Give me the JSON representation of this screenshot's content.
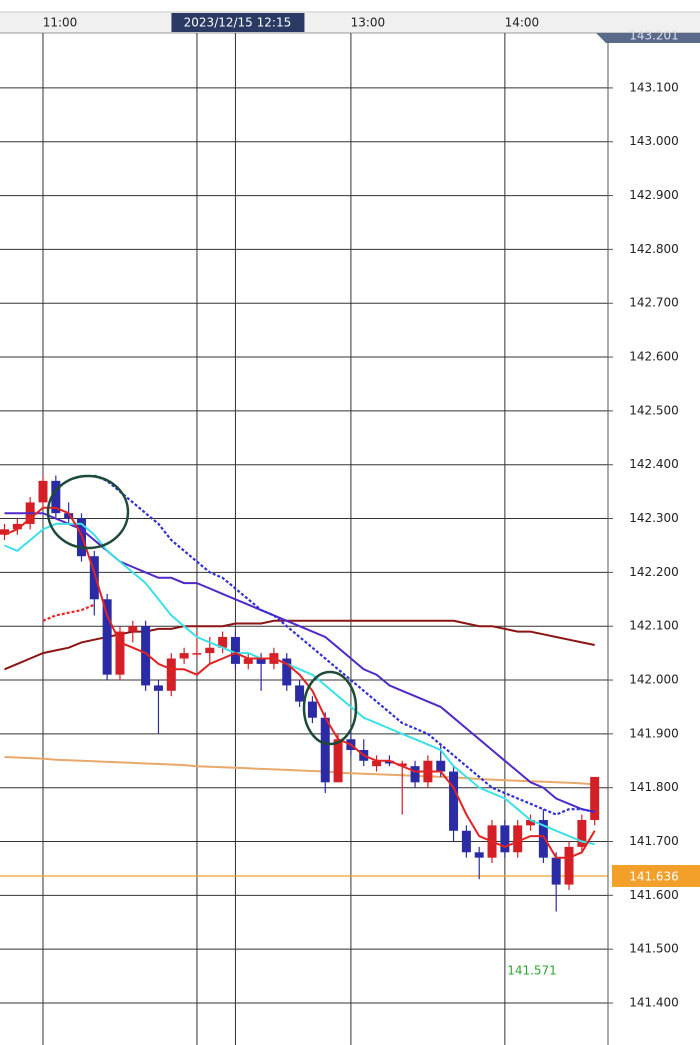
{
  "chart_data": {
    "type": "candlestick",
    "categories": [
      null,
      null,
      null,
      "11:00",
      null,
      null,
      null,
      null,
      null,
      null,
      null,
      null,
      null,
      null,
      null,
      null,
      null,
      null,
      "2023/12/15 12:15",
      null,
      null,
      null,
      null,
      null,
      null,
      null,
      null,
      "13:00",
      null,
      null,
      null,
      null,
      null,
      null,
      null,
      null,
      null,
      null,
      null,
      "14:00",
      null,
      null,
      null,
      null,
      null,
      null,
      null
    ],
    "open": [
      142.27,
      142.28,
      142.29,
      142.33,
      142.37,
      142.31,
      142.3,
      142.23,
      142.15,
      142.01,
      142.09,
      142.1,
      141.99,
      141.98,
      142.04,
      142.05,
      142.05,
      142.06,
      142.08,
      142.03,
      142.04,
      142.03,
      142.04,
      141.99,
      141.96,
      141.93,
      141.81,
      141.89,
      141.87,
      141.84,
      141.85,
      141.84,
      141.84,
      141.81,
      141.85,
      141.83,
      141.72,
      141.68,
      141.67,
      141.73,
      141.68,
      141.73,
      141.74,
      141.67,
      141.62,
      141.69,
      141.74
    ],
    "high": [
      142.29,
      142.3,
      142.34,
      142.38,
      142.38,
      142.33,
      142.31,
      142.24,
      142.16,
      142.1,
      142.11,
      142.11,
      142.0,
      142.05,
      142.06,
      142.09,
      142.08,
      142.09,
      142.09,
      142.05,
      142.05,
      142.06,
      142.05,
      142.0,
      141.97,
      141.94,
      141.9,
      141.91,
      141.89,
      141.86,
      141.86,
      141.85,
      141.85,
      141.86,
      141.88,
      141.84,
      141.73,
      141.69,
      141.74,
      141.74,
      141.74,
      141.75,
      141.76,
      141.68,
      141.7,
      141.75,
      141.82
    ],
    "low": [
      142.26,
      142.27,
      142.28,
      142.32,
      142.3,
      142.29,
      142.22,
      142.12,
      142.0,
      142.0,
      142.07,
      141.98,
      141.9,
      141.97,
      142.03,
      142.04,
      142.03,
      142.05,
      142.02,
      142.02,
      141.98,
      142.02,
      141.98,
      141.95,
      141.92,
      141.79,
      141.81,
      141.86,
      141.84,
      141.83,
      141.84,
      141.75,
      141.8,
      141.8,
      141.82,
      141.7,
      141.67,
      141.63,
      141.66,
      141.67,
      141.67,
      141.72,
      141.66,
      141.57,
      141.61,
      141.68,
      141.73
    ],
    "close": [
      142.28,
      142.29,
      142.33,
      142.37,
      142.31,
      142.3,
      142.23,
      142.15,
      142.01,
      142.09,
      142.1,
      141.99,
      141.98,
      142.04,
      142.05,
      142.05,
      142.06,
      142.08,
      142.03,
      142.04,
      142.03,
      142.05,
      141.99,
      141.96,
      141.93,
      141.81,
      141.89,
      141.87,
      141.85,
      141.85,
      141.845,
      141.845,
      141.81,
      141.85,
      141.83,
      141.72,
      141.68,
      141.67,
      141.73,
      141.68,
      141.73,
      141.74,
      141.67,
      141.62,
      141.69,
      141.74,
      141.82
    ],
    "up_color": "#d41f26",
    "down_color": "#2b2ba6",
    "lines": [
      {
        "color": "#e8a96a",
        "dash": false,
        "values": [
          141.857,
          141.856,
          141.855,
          141.854,
          141.852,
          141.851,
          141.85,
          141.849,
          141.848,
          141.847,
          141.846,
          141.845,
          141.844,
          141.843,
          141.842,
          141.84,
          141.839,
          141.838,
          141.837,
          141.836,
          141.835,
          141.834,
          141.833,
          141.832,
          141.831,
          141.83,
          141.828,
          141.827,
          141.826,
          141.825,
          141.824,
          141.823,
          141.822,
          141.821,
          141.82,
          141.819,
          141.818,
          141.816,
          141.815,
          141.814,
          141.813,
          141.812,
          141.811,
          141.81,
          141.809,
          141.808,
          141.806
        ]
      },
      {
        "color": "#8b1414",
        "dash": false,
        "values": [
          142.02,
          142.03,
          142.04,
          142.05,
          142.055,
          142.06,
          142.07,
          142.075,
          142.08,
          142.085,
          142.09,
          142.09,
          142.095,
          142.095,
          142.1,
          142.1,
          142.1,
          142.1,
          142.105,
          142.105,
          142.105,
          142.11,
          142.11,
          142.11,
          142.11,
          142.11,
          142.11,
          142.11,
          142.11,
          142.11,
          142.11,
          142.11,
          142.11,
          142.11,
          142.11,
          142.11,
          142.105,
          142.1,
          142.1,
          142.095,
          142.09,
          142.09,
          142.085,
          142.08,
          142.075,
          142.07,
          142.065
        ]
      },
      {
        "color": "#5029c8",
        "dash": false,
        "values": [
          142.31,
          142.31,
          142.31,
          142.31,
          142.3,
          142.29,
          142.28,
          142.26,
          142.24,
          142.22,
          142.21,
          142.2,
          142.19,
          142.19,
          142.18,
          142.18,
          142.17,
          142.16,
          142.15,
          142.14,
          142.13,
          142.12,
          142.11,
          142.1,
          142.09,
          142.08,
          142.06,
          142.04,
          142.02,
          142.01,
          141.99,
          141.98,
          141.97,
          141.96,
          141.95,
          141.93,
          141.91,
          141.89,
          141.87,
          141.85,
          141.83,
          141.81,
          141.8,
          141.78,
          141.77,
          141.76,
          141.755
        ]
      },
      {
        "color": "#3ee0e8",
        "dash": false,
        "values": [
          142.25,
          142.24,
          142.26,
          142.28,
          142.29,
          142.29,
          142.29,
          142.27,
          142.24,
          142.22,
          142.2,
          142.18,
          142.15,
          142.12,
          142.1,
          142.08,
          142.07,
          142.06,
          142.05,
          142.05,
          142.04,
          142.04,
          142.03,
          142.02,
          142.01,
          141.99,
          141.97,
          141.95,
          141.93,
          141.92,
          141.91,
          141.9,
          141.89,
          141.88,
          141.87,
          141.84,
          141.82,
          141.8,
          141.79,
          141.78,
          141.76,
          141.74,
          141.73,
          141.72,
          141.71,
          141.7,
          141.695
        ]
      },
      {
        "color": "#e32222",
        "dash": false,
        "values": [
          142.27,
          142.28,
          142.3,
          142.32,
          142.32,
          142.31,
          142.27,
          142.2,
          142.12,
          142.07,
          142.06,
          142.05,
          142.03,
          142.02,
          142.02,
          142.01,
          142.03,
          142.04,
          142.05,
          142.04,
          142.04,
          142.04,
          142.03,
          142.01,
          141.98,
          141.93,
          141.89,
          141.88,
          141.86,
          141.85,
          141.85,
          141.84,
          141.83,
          141.83,
          141.83,
          141.8,
          141.75,
          141.71,
          141.7,
          141.69,
          141.7,
          141.71,
          141.71,
          141.67,
          141.67,
          141.68,
          141.72
        ]
      },
      {
        "color": "#3030d8",
        "dash": true,
        "values": [
          null,
          null,
          null,
          null,
          null,
          null,
          null,
          142.38,
          142.37,
          142.35,
          142.33,
          142.31,
          142.29,
          142.26,
          142.24,
          142.22,
          142.2,
          142.19,
          142.17,
          142.15,
          142.13,
          142.12,
          142.1,
          142.08,
          142.06,
          142.04,
          142.02,
          142.0,
          141.98,
          141.96,
          141.94,
          141.92,
          141.91,
          141.9,
          141.88,
          141.86,
          141.84,
          141.82,
          141.8,
          141.79,
          141.78,
          141.77,
          141.76,
          141.75,
          141.76,
          141.76,
          141.755
        ]
      },
      {
        "color": "#e82424",
        "dash": true,
        "values": [
          null,
          null,
          null,
          142.11,
          142.12,
          142.125,
          142.13,
          142.14,
          null,
          null,
          null,
          null,
          null,
          null,
          null,
          null,
          null,
          null,
          null,
          null,
          null,
          null,
          null,
          null,
          null,
          null,
          null,
          null,
          null,
          null,
          null,
          null,
          null,
          null,
          null,
          null,
          null,
          null,
          null,
          null,
          null,
          null,
          null,
          null,
          null,
          null,
          null
        ]
      }
    ],
    "ylim": [
      141.322,
      143.202
    ],
    "yticks": [
      {
        "value": 141.4,
        "label": "141.400"
      },
      {
        "value": 141.5,
        "label": "141.500"
      },
      {
        "value": 141.6,
        "label": "141.600"
      },
      {
        "value": 141.7,
        "label": "141.700"
      },
      {
        "value": 141.8,
        "label": "141.800"
      },
      {
        "value": 141.9,
        "label": "141.900"
      },
      {
        "value": 142.0,
        "label": "142.000"
      },
      {
        "value": 142.1,
        "label": "142.100"
      },
      {
        "value": 142.2,
        "label": "142.200"
      },
      {
        "value": 142.3,
        "label": "142.300"
      },
      {
        "value": 142.4,
        "label": "142.400"
      },
      {
        "value": 142.5,
        "label": "142.500"
      },
      {
        "value": 142.6,
        "label": "142.600"
      },
      {
        "value": 142.7,
        "label": "142.700"
      },
      {
        "value": 142.8,
        "label": "142.800"
      },
      {
        "value": 142.9,
        "label": "142.900"
      },
      {
        "value": 143.0,
        "label": "143.000"
      },
      {
        "value": 143.1,
        "label": "143.100"
      }
    ],
    "grid": true,
    "current_price": 141.636,
    "current_color": "#f2a02a",
    "low_price": 141.571,
    "low_color": "#2aa830",
    "top_price": 143.201
  }
}
